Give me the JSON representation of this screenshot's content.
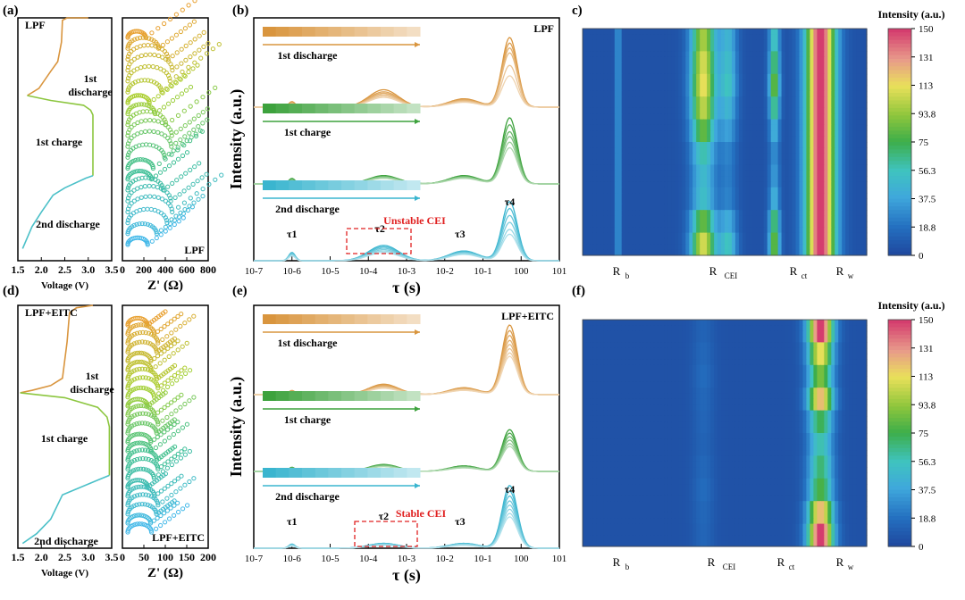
{
  "figure": {
    "panel_labels": [
      "(a)",
      "(b)",
      "c)",
      "(d)",
      "(e)",
      "(f)"
    ]
  },
  "chart_data": [
    {
      "id": "a",
      "type": "line",
      "title": "LPF",
      "left": {
        "xlabel": "Voltage (V)",
        "xticks": [
          "1.5",
          "2.0",
          "2.5",
          "3.0",
          "3.5"
        ],
        "xlim": [
          1.5,
          3.5
        ],
        "segments": [
          {
            "name": "1st discharge",
            "color": "#d9953e",
            "points": [
              [
                3.0,
                1.0
              ],
              [
                2.55,
                1.0
              ],
              [
                2.45,
                0.99
              ],
              [
                2.43,
                0.9
              ],
              [
                2.35,
                0.82
              ],
              [
                2.2,
                0.78
              ],
              [
                1.95,
                0.71
              ],
              [
                1.7,
                0.68
              ]
            ]
          },
          {
            "name": "1st charge",
            "color": "#8cc63f",
            "points": [
              [
                1.7,
                0.68
              ],
              [
                2.2,
                0.66
              ],
              [
                2.9,
                0.64
              ],
              [
                3.05,
                0.62
              ],
              [
                3.1,
                0.6
              ],
              [
                3.1,
                0.35
              ]
            ]
          },
          {
            "name": "2nd discharge",
            "color": "#4bc0c8",
            "points": [
              [
                3.1,
                0.35
              ],
              [
                2.95,
                0.34
              ],
              [
                2.5,
                0.3
              ],
              [
                2.25,
                0.27
              ],
              [
                2.0,
                0.2
              ],
              [
                1.8,
                0.14
              ],
              [
                1.6,
                0.05
              ]
            ]
          }
        ],
        "annotations": [
          "1st",
          "discharge",
          "1st charge",
          "2nd discharge"
        ]
      },
      "right": {
        "xlabel": "Z' (Ω)",
        "xticks": [
          "0",
          "200",
          "400",
          "600",
          "800"
        ],
        "xlim": [
          0,
          800
        ],
        "n_curves": 20,
        "label": "LPF"
      }
    },
    {
      "id": "b",
      "type": "line",
      "title": "LPF",
      "xlabel": "τ (s)",
      "ylabel": "Intensity (a.u.)",
      "xscale": "log",
      "xlim_exp": [
        -7,
        1
      ],
      "xticks": [
        "10-7",
        "10-6",
        "10-5",
        "10-4",
        "10-3",
        "10-2",
        "10-1",
        "100",
        "101"
      ],
      "tau_labels": [
        "τ1",
        "τ2",
        "τ3",
        "τ4"
      ],
      "tau_positions_log": [
        -6,
        -3.7,
        -1.6,
        -0.3
      ],
      "peak_centers_log": [
        -6,
        -3.6,
        -1.5,
        -0.3
      ],
      "groups": [
        {
          "name": "1st discharge",
          "color": "#d9953e",
          "n": 6,
          "peak_heights": [
            [
              0.08,
              0.25,
              0.12,
              1.0
            ],
            [
              0.07,
              0.22,
              0.11,
              0.92
            ],
            [
              0.06,
              0.2,
              0.1,
              0.85
            ],
            [
              0.05,
              0.18,
              0.09,
              0.78
            ],
            [
              0.05,
              0.16,
              0.08,
              0.6
            ],
            [
              0.04,
              0.14,
              0.07,
              0.45
            ]
          ]
        },
        {
          "name": "1st charge",
          "color": "#3da23d",
          "n": 6,
          "peak_heights": [
            [
              0.08,
              0.12,
              0.12,
              0.95
            ],
            [
              0.07,
              0.11,
              0.11,
              0.85
            ],
            [
              0.06,
              0.1,
              0.1,
              0.75
            ],
            [
              0.05,
              0.1,
              0.1,
              0.68
            ],
            [
              0.05,
              0.09,
              0.09,
              0.6
            ],
            [
              0.04,
              0.08,
              0.08,
              0.52
            ]
          ]
        },
        {
          "name": "2nd discharge",
          "color": "#3ab5cf",
          "n": 6,
          "peak_heights": [
            [
              0.12,
              0.22,
              0.14,
              0.85
            ],
            [
              0.11,
              0.2,
              0.13,
              0.75
            ],
            [
              0.1,
              0.18,
              0.12,
              0.65
            ],
            [
              0.09,
              0.16,
              0.11,
              0.55
            ],
            [
              0.08,
              0.14,
              0.1,
              0.45
            ],
            [
              0.07,
              0.12,
              0.09,
              0.38
            ]
          ]
        }
      ],
      "annotation": "Unstable CEI"
    },
    {
      "id": "c",
      "type": "heatmap",
      "colorbar_title": "Intensity (a.u.)",
      "colorbar_ticks": [
        "150",
        "131",
        "113",
        "93.8",
        "75",
        "56.3",
        "37.5",
        "18.8",
        "0"
      ],
      "clim": [
        0,
        150
      ],
      "column_labels": [
        "R",
        "R",
        "R",
        "R"
      ],
      "column_subscripts": [
        "b",
        "CEI",
        "ct",
        "w"
      ],
      "bands": [
        {
          "center_log": -6.0,
          "width": 0.07,
          "intensity": [
            35,
            35,
            35,
            35,
            35,
            35,
            35,
            35,
            35,
            35
          ]
        },
        {
          "center_log": -3.6,
          "width": 0.35,
          "intensity": [
            95,
            105,
            110,
            100,
            80,
            55,
            45,
            48,
            80,
            105
          ]
        },
        {
          "center_log": -2.9,
          "width": 0.25,
          "intensity": [
            40,
            45,
            50,
            40,
            30,
            20,
            18,
            20,
            35,
            50
          ]
        },
        {
          "center_log": -1.6,
          "width": 0.15,
          "intensity": [
            55,
            70,
            85,
            65,
            40,
            25,
            30,
            40,
            70,
            85
          ]
        },
        {
          "center_log": -0.3,
          "width": 0.42,
          "intensity": [
            150,
            150,
            150,
            150,
            150,
            150,
            150,
            150,
            150,
            150
          ]
        }
      ]
    },
    {
      "id": "d",
      "type": "line",
      "title": "LPF+EITC",
      "left": {
        "xlabel": "Voltage (V)",
        "xticks": [
          "1.5",
          "2.0",
          "2.5",
          "3.0",
          "3.5"
        ],
        "xlim": [
          1.5,
          3.5
        ],
        "segments": [
          {
            "name": "1st discharge",
            "color": "#d9953e",
            "points": [
              [
                3.1,
                1.0
              ],
              [
                2.75,
                0.99
              ],
              [
                2.6,
                0.97
              ],
              [
                2.55,
                0.85
              ],
              [
                2.45,
                0.7
              ],
              [
                2.2,
                0.67
              ],
              [
                1.8,
                0.65
              ],
              [
                1.55,
                0.64
              ]
            ]
          },
          {
            "name": "1st charge",
            "color": "#8cc63f",
            "points": [
              [
                1.55,
                0.64
              ],
              [
                2.5,
                0.62
              ],
              [
                3.2,
                0.58
              ],
              [
                3.4,
                0.54
              ],
              [
                3.45,
                0.5
              ],
              [
                3.45,
                0.3
              ]
            ]
          },
          {
            "name": "2nd discharge",
            "color": "#4bc0c8",
            "points": [
              [
                3.45,
                0.3
              ],
              [
                3.2,
                0.28
              ],
              [
                2.7,
                0.24
              ],
              [
                2.45,
                0.22
              ],
              [
                2.2,
                0.12
              ],
              [
                1.9,
                0.06
              ],
              [
                1.6,
                0.02
              ]
            ]
          }
        ],
        "annotations": [
          "1st",
          "discharge",
          "1st charge",
          "2nd discharge"
        ]
      },
      "right": {
        "xlabel": "Z' (Ω)",
        "xticks": [
          "0",
          "50",
          "100",
          "150",
          "200"
        ],
        "xlim": [
          0,
          200
        ],
        "n_curves": 24,
        "label": "LPF+EITC"
      }
    },
    {
      "id": "e",
      "type": "line",
      "title": "LPF+EITC",
      "xlabel": "τ (s)",
      "ylabel": "Intensity (a.u.)",
      "xscale": "log",
      "xlim_exp": [
        -7,
        1
      ],
      "xticks": [
        "10-7",
        "10-6",
        "10-5",
        "10-4",
        "10-3",
        "10-2",
        "10-1",
        "100",
        "101"
      ],
      "tau_labels": [
        "τ1",
        "τ2",
        "τ3",
        "τ4"
      ],
      "tau_positions_log": [
        -6,
        -3.6,
        -1.6,
        -0.3
      ],
      "peak_centers_log": [
        -6,
        -3.6,
        -1.5,
        -0.3
      ],
      "groups": [
        {
          "name": "1st discharge",
          "color": "#d9953e",
          "n": 8,
          "peak_heights": [
            [
              0.06,
              0.15,
              0.1,
              1.0
            ],
            [
              0.05,
              0.14,
              0.09,
              0.92
            ],
            [
              0.05,
              0.13,
              0.09,
              0.85
            ],
            [
              0.05,
              0.12,
              0.08,
              0.78
            ],
            [
              0.04,
              0.11,
              0.08,
              0.72
            ],
            [
              0.04,
              0.1,
              0.07,
              0.66
            ],
            [
              0.04,
              0.1,
              0.07,
              0.6
            ],
            [
              0.03,
              0.09,
              0.06,
              0.55
            ]
          ]
        },
        {
          "name": "1st charge",
          "color": "#3da23d",
          "n": 6,
          "peak_heights": [
            [
              0.06,
              0.1,
              0.08,
              0.6
            ],
            [
              0.05,
              0.09,
              0.07,
              0.55
            ],
            [
              0.05,
              0.09,
              0.07,
              0.5
            ],
            [
              0.04,
              0.08,
              0.06,
              0.45
            ],
            [
              0.04,
              0.07,
              0.06,
              0.4
            ],
            [
              0.03,
              0.07,
              0.05,
              0.36
            ]
          ]
        },
        {
          "name": "2nd discharge",
          "color": "#3ab5cf",
          "n": 8,
          "peak_heights": [
            [
              0.06,
              0.07,
              0.07,
              0.9
            ],
            [
              0.05,
              0.07,
              0.07,
              0.82
            ],
            [
              0.05,
              0.06,
              0.06,
              0.75
            ],
            [
              0.05,
              0.06,
              0.06,
              0.68
            ],
            [
              0.04,
              0.05,
              0.05,
              0.62
            ],
            [
              0.04,
              0.05,
              0.05,
              0.56
            ],
            [
              0.04,
              0.05,
              0.05,
              0.5
            ],
            [
              0.03,
              0.04,
              0.04,
              0.45
            ]
          ]
        }
      ],
      "annotation": "Stable CEI"
    },
    {
      "id": "f",
      "type": "heatmap",
      "colorbar_title": "Intensity (a.u.)",
      "colorbar_ticks": [
        "150",
        "131",
        "113",
        "93.8",
        "75",
        "56.3",
        "37.5",
        "18.8",
        "0"
      ],
      "clim": [
        0,
        150
      ],
      "column_labels": [
        "R",
        "R",
        "R",
        "R"
      ],
      "column_subscripts": [
        "b",
        "CEI",
        "ct",
        "w"
      ],
      "bands": [
        {
          "center_log": -3.6,
          "width": 0.3,
          "intensity": [
            8,
            10,
            12,
            10,
            9,
            8,
            10,
            12,
            10,
            9
          ]
        },
        {
          "center_log": -0.3,
          "width": 0.35,
          "intensity": [
            150,
            110,
            85,
            120,
            70,
            55,
            65,
            75,
            120,
            150
          ]
        }
      ]
    }
  ]
}
